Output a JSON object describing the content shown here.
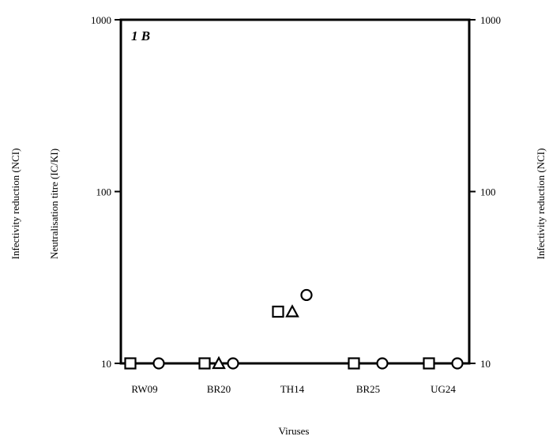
{
  "chart_data": {
    "type": "scatter",
    "panel_label": "1 B",
    "x_label": "Viruses",
    "y_label_left_outer": "Infectivity reduction (NCI)",
    "y_label_left_inner": "Neutralisation titre (IC/KI)",
    "y_label_right": "Infectivity reduction (NCI)",
    "y_scale": "log",
    "ylim": [
      10,
      1000
    ],
    "y_ticks": [
      "10",
      "100",
      "1000"
    ],
    "y_ticks_right": [
      "10",
      "100",
      "1000"
    ],
    "categories": [
      "RW09",
      "BR20",
      "TH14",
      "BR25",
      "UG24"
    ],
    "series": [
      {
        "marker": "square",
        "values": [
          10,
          10,
          20,
          10,
          10
        ]
      },
      {
        "marker": "triangle",
        "values": [
          null,
          10,
          20,
          null,
          null
        ]
      },
      {
        "marker": "circle",
        "values": [
          10,
          10,
          25,
          10,
          10
        ]
      }
    ],
    "baseline_line_at": 10,
    "grid": false,
    "legend": "none"
  }
}
